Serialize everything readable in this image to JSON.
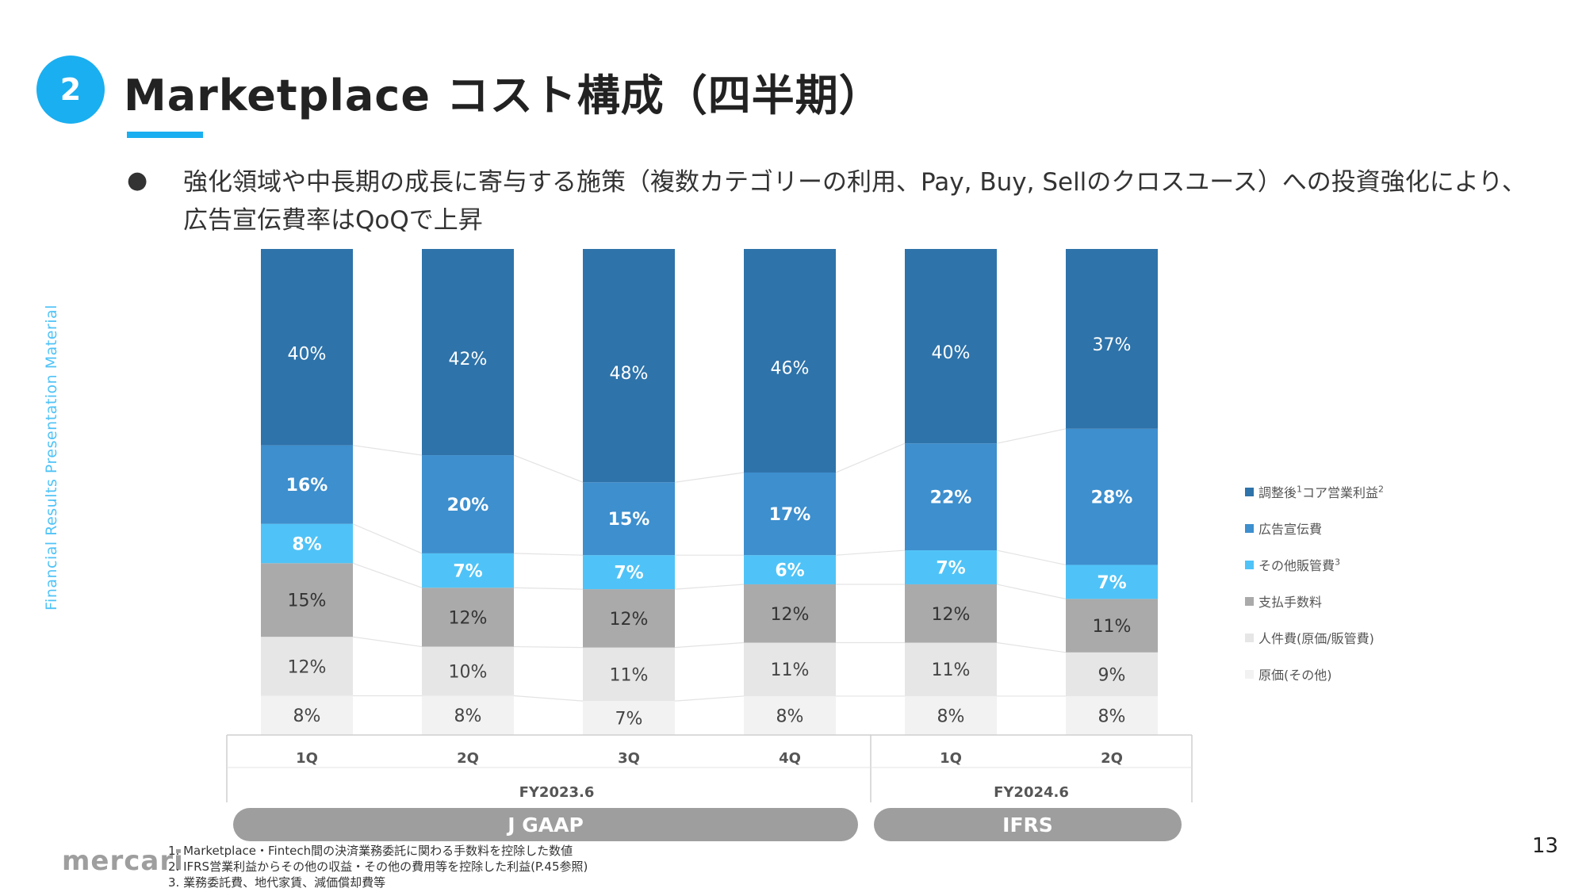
{
  "slide": {
    "number": "2",
    "title": "Marketplace コスト構成（四半期）",
    "bullet_marker": "●",
    "bullet_text": "強化領域や中長期の成長に寄与する施策（複数カテゴリーの利用、Pay, Buy, Sellのクロスユース）への投資強化により、広告宣伝費率はQoQで上昇",
    "side_label": "Financial Results Presentation Material",
    "logo": "mercari",
    "page_number": "13",
    "footnotes": [
      "1. Marketplace・Fintech間の決済業務委託に関わる手数料を控除した数値",
      "2. IFRS営業利益からその他の収益・その他の費用等を控除した利益(P.45参照)",
      "3. 業務委託費、地代家賃、減価償却費等"
    ]
  },
  "chart_data": {
    "type": "bar",
    "stacked": true,
    "normalized": true,
    "categories": [
      "1Q",
      "2Q",
      "3Q",
      "4Q",
      "1Q",
      "2Q"
    ],
    "groups": [
      {
        "label": "FY2023.6",
        "accounting": "J GAAP",
        "categories": [
          0,
          1,
          2,
          3
        ]
      },
      {
        "label": "FY2024.6",
        "accounting": "IFRS",
        "categories": [
          4,
          5
        ]
      }
    ],
    "series": [
      {
        "name": "原価(その他)",
        "color": "#f2f2f2",
        "label_color": "#444444",
        "bold": false,
        "values": [
          8,
          8,
          7,
          8,
          8,
          8
        ],
        "labels": [
          "8%",
          "8%",
          "7%",
          "8%",
          "8%",
          "8%"
        ]
      },
      {
        "name": "人件費(原価/販管費)",
        "color": "#e6e6e6",
        "label_color": "#444444",
        "bold": false,
        "values": [
          12,
          10,
          11,
          11,
          11,
          9
        ],
        "labels": [
          "12%",
          "10%",
          "11%",
          "11%",
          "11%",
          "9%"
        ]
      },
      {
        "name": "支払手数料",
        "color": "#aaaaaa",
        "label_color": "#333333",
        "bold": false,
        "values": [
          15,
          12,
          12,
          12,
          12,
          11
        ],
        "labels": [
          "15%",
          "12%",
          "12%",
          "12%",
          "12%",
          "11%"
        ]
      },
      {
        "name": "その他販管費",
        "note": "3",
        "color": "#4fc3f7",
        "label_color": "#ffffff",
        "bold": true,
        "values": [
          8,
          7,
          7,
          6,
          7,
          7
        ],
        "labels": [
          "8%",
          "7%",
          "7%",
          "6%",
          "7%",
          "7%"
        ]
      },
      {
        "name": "広告宣伝費",
        "color": "#3d8fce",
        "label_color": "#ffffff",
        "bold": true,
        "values": [
          16,
          20,
          15,
          17,
          22,
          28
        ],
        "labels": [
          "16%",
          "20%",
          "15%",
          "17%",
          "22%",
          "28%"
        ]
      },
      {
        "name": "調整後",
        "note_inline": "1",
        "name_suffix": "コア営業利益",
        "note": "2",
        "color": "#2e73aa",
        "label_color": "#ffffff",
        "bold": false,
        "values": [
          40,
          42,
          48,
          46,
          40,
          37
        ],
        "labels": [
          "40%",
          "42%",
          "48%",
          "46%",
          "40%",
          "37%"
        ]
      }
    ],
    "legend": {
      "placement": "right",
      "entries": [
        {
          "text": "調整後",
          "sup1": "1",
          "text2": "コア営業利益",
          "sup2": "2",
          "color": "#2e73aa"
        },
        {
          "text": "広告宣伝費",
          "sup1": "",
          "text2": "",
          "sup2": "",
          "color": "#3d8fce"
        },
        {
          "text": "その他販管費",
          "sup1": "",
          "text2": "",
          "sup2": "3",
          "color": "#4fc3f7"
        },
        {
          "text": "支払手数料",
          "sup1": "",
          "text2": "",
          "sup2": "",
          "color": "#aaaaaa"
        },
        {
          "text": "人件費(原価/販管費)",
          "sup1": "",
          "text2": "",
          "sup2": "",
          "color": "#e6e6e6"
        },
        {
          "text": "原価(その他)",
          "sup1": "",
          "text2": "",
          "sup2": "",
          "color": "#f2f2f2"
        }
      ]
    },
    "ylim": [
      0,
      100
    ],
    "title": "",
    "xlabel": "",
    "ylabel": ""
  }
}
